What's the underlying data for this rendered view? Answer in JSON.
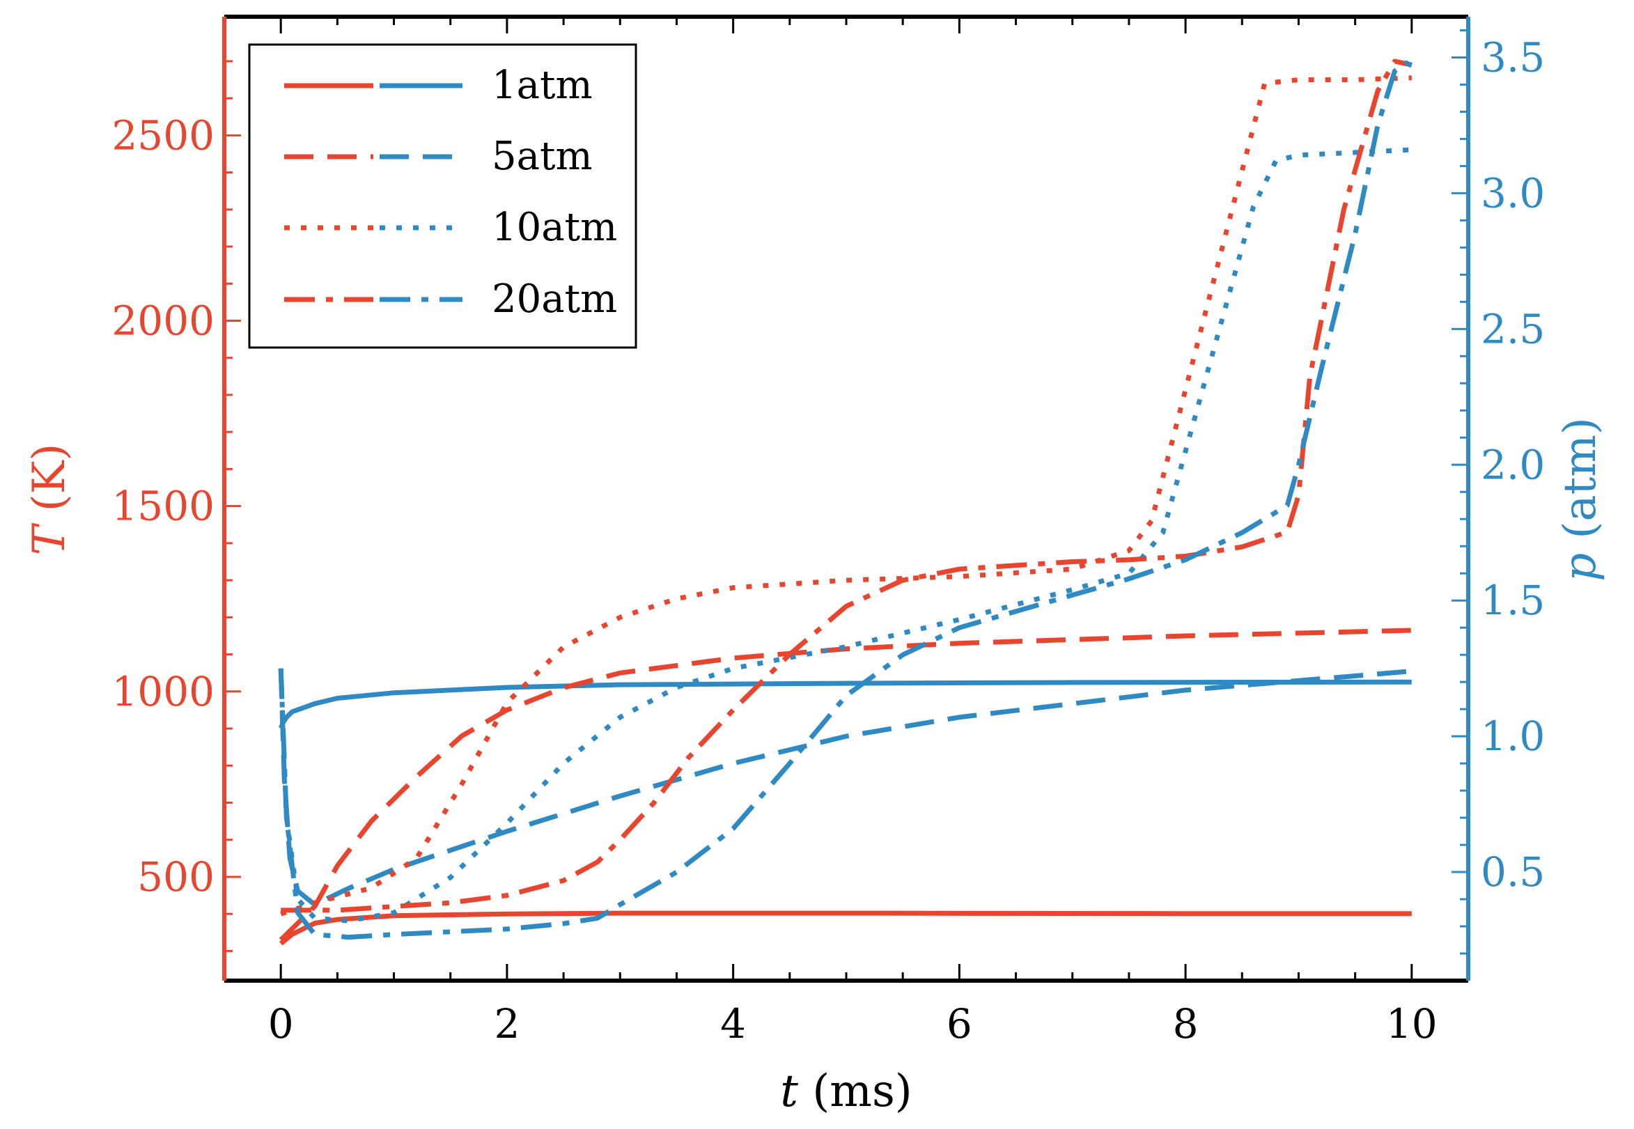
{
  "chart_data": {
    "type": "line",
    "title": "",
    "xlabel": {
      "var": "t",
      "unit": " (ms)"
    },
    "ylabel_left": {
      "var": "T",
      "unit": " (K)"
    },
    "ylabel_right": {
      "var": "p",
      "unit": " (atm)"
    },
    "xlim": [
      -0.5,
      10.5
    ],
    "ylim_left": [
      220,
      2820
    ],
    "ylim_right": [
      0.1,
      3.65
    ],
    "xticks": [
      0,
      2,
      4,
      6,
      8,
      10
    ],
    "yticks_left": [
      500,
      1000,
      1500,
      2000,
      2500
    ],
    "yticks_right": [
      0.5,
      1.0,
      1.5,
      2.0,
      2.5,
      3.0,
      3.5
    ],
    "xtick_labels": [
      "0",
      "2",
      "4",
      "6",
      "8",
      "10"
    ],
    "ytick_labels_left": [
      "500",
      "1000",
      "1500",
      "2000",
      "2500"
    ],
    "ytick_labels_right": [
      "0.5",
      "1.0",
      "1.5",
      "2.0",
      "2.5",
      "3.0",
      "3.5"
    ],
    "colors": {
      "temperature": "#e8452f",
      "pressure": "#2f8ac4",
      "frame": "#000000"
    },
    "legend": {
      "position": "top-left",
      "entries": [
        {
          "label": "1atm",
          "dash": "solid"
        },
        {
          "label": "5atm",
          "dash": "dashed"
        },
        {
          "label": "10atm",
          "dash": "dotted"
        },
        {
          "label": "20atm",
          "dash": "dashdot"
        }
      ]
    },
    "series": [
      {
        "name": "T 1atm",
        "axis": "left",
        "quantity": "temperature",
        "dash": "solid",
        "x": [
          0,
          0.1,
          0.3,
          0.5,
          1,
          2,
          3,
          5,
          8,
          10
        ],
        "y": [
          320,
          345,
          375,
          385,
          395,
          400,
          402,
          402,
          401,
          401
        ]
      },
      {
        "name": "p 1atm",
        "axis": "right",
        "quantity": "pressure",
        "dash": "solid",
        "x": [
          0,
          0.02,
          0.05,
          0.1,
          0.3,
          0.5,
          1,
          2,
          3,
          5,
          7,
          10
        ],
        "y": [
          1.03,
          1.05,
          1.07,
          1.09,
          1.12,
          1.14,
          1.16,
          1.18,
          1.19,
          1.195,
          1.198,
          1.2
        ]
      },
      {
        "name": "T 5atm",
        "axis": "left",
        "quantity": "temperature",
        "dash": "dashed",
        "x": [
          0,
          0.1,
          0.3,
          0.5,
          0.8,
          1.2,
          1.6,
          2,
          2.5,
          3,
          4,
          5,
          6,
          8,
          10
        ],
        "y": [
          330,
          360,
          420,
          530,
          650,
          770,
          880,
          950,
          1010,
          1050,
          1090,
          1115,
          1130,
          1150,
          1165
        ]
      },
      {
        "name": "p 5atm",
        "axis": "right",
        "quantity": "pressure",
        "dash": "dashed",
        "x": [
          0,
          0.03,
          0.08,
          0.15,
          0.3,
          0.6,
          1,
          2,
          3,
          4,
          5,
          6,
          8,
          10
        ],
        "y": [
          1.25,
          0.85,
          0.55,
          0.43,
          0.38,
          0.44,
          0.51,
          0.65,
          0.78,
          0.9,
          1.0,
          1.07,
          1.17,
          1.24
        ]
      },
      {
        "name": "T 10atm",
        "axis": "left",
        "quantity": "temperature",
        "dash": "dotted",
        "x": [
          0,
          0.3,
          0.8,
          1.2,
          1.6,
          2,
          2.5,
          3,
          3.5,
          4,
          5,
          6,
          7,
          7.5,
          7.7,
          8.2,
          8.7,
          9,
          9.5,
          10
        ],
        "y": [
          400,
          430,
          470,
          550,
          750,
          970,
          1120,
          1200,
          1250,
          1280,
          1300,
          1310,
          1330,
          1380,
          1460,
          2050,
          2640,
          2650,
          2650,
          2655
        ]
      },
      {
        "name": "p 10atm",
        "axis": "right",
        "quantity": "pressure",
        "dash": "dotted",
        "x": [
          0,
          0.05,
          0.15,
          0.3,
          0.6,
          1,
          1.5,
          2,
          2.5,
          3,
          3.5,
          4,
          5,
          6,
          7,
          7.5,
          7.8,
          8.2,
          8.6,
          8.8,
          9,
          9.5,
          10
        ],
        "y": [
          1.25,
          0.7,
          0.4,
          0.33,
          0.32,
          0.35,
          0.48,
          0.68,
          0.9,
          1.07,
          1.18,
          1.25,
          1.33,
          1.43,
          1.54,
          1.6,
          1.75,
          2.35,
          2.95,
          3.12,
          3.14,
          3.15,
          3.16
        ]
      },
      {
        "name": "T 20atm",
        "axis": "left",
        "quantity": "temperature",
        "dash": "dashdot",
        "x": [
          0,
          0.5,
          1,
          1.5,
          2,
          2.5,
          2.8,
          3,
          3.3,
          3.6,
          4,
          4.5,
          5,
          5.5,
          6,
          6.5,
          7,
          7.5,
          8,
          8.5,
          8.9,
          9,
          9.1,
          9.4,
          9.7,
          9.85,
          10
        ],
        "y": [
          410,
          410,
          420,
          430,
          450,
          490,
          540,
          600,
          700,
          820,
          950,
          1100,
          1230,
          1300,
          1330,
          1340,
          1350,
          1355,
          1365,
          1390,
          1430,
          1530,
          1850,
          2300,
          2620,
          2700,
          2690
        ]
      },
      {
        "name": "p 20atm",
        "axis": "right",
        "quantity": "pressure",
        "dash": "dashdot",
        "x": [
          0,
          0.05,
          0.15,
          0.3,
          0.6,
          1,
          1.5,
          2,
          2.5,
          2.8,
          3,
          3.5,
          4,
          4.5,
          5,
          5.5,
          6,
          7,
          7.5,
          8,
          8.5,
          8.9,
          9,
          9.2,
          9.5,
          9.7,
          9.85,
          9.95,
          10
        ],
        "y": [
          1.25,
          0.7,
          0.35,
          0.27,
          0.26,
          0.27,
          0.28,
          0.29,
          0.31,
          0.33,
          0.38,
          0.5,
          0.66,
          0.9,
          1.15,
          1.3,
          1.4,
          1.52,
          1.58,
          1.65,
          1.75,
          1.85,
          2.0,
          2.35,
          2.85,
          3.25,
          3.45,
          3.48,
          3.47
        ]
      }
    ]
  }
}
